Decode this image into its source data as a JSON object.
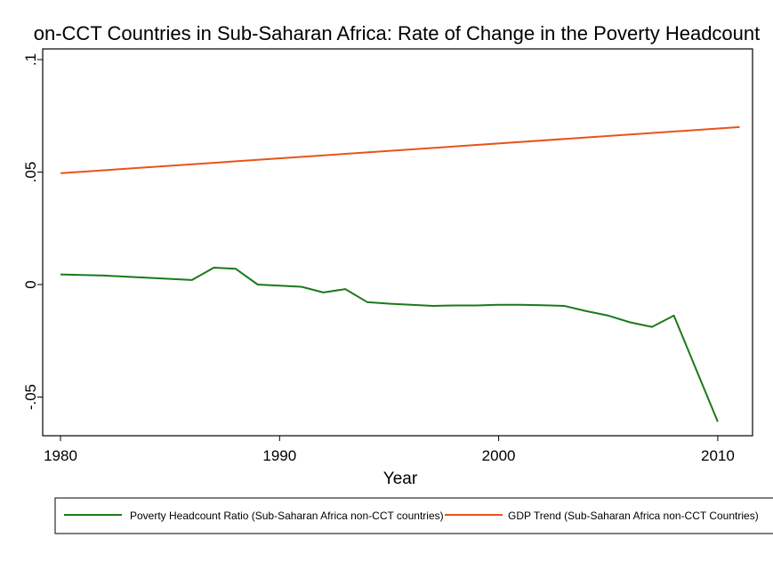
{
  "chart_data": {
    "type": "line",
    "title": "on-CCT Countries in Sub-Saharan Africa: Rate of Change in the Poverty Headcount",
    "xlabel": "Year",
    "ylabel": "",
    "xlim": [
      1980,
      2011
    ],
    "ylim": [
      -0.067,
      0.1
    ],
    "xticks": [
      1980,
      1990,
      2000,
      2010
    ],
    "xtick_labels": [
      "1980",
      "1990",
      "2000",
      "2010"
    ],
    "yticks": [
      -0.05,
      0,
      0.05,
      0.1
    ],
    "ytick_labels": [
      "-.05",
      "0",
      ".05",
      ".1"
    ],
    "grid": false,
    "legend_position": "bottom",
    "series": [
      {
        "name": "Poverty Headcount Ratio (Sub-Saharan Africa non-CCT countries)",
        "color": "#1a7a1a",
        "x": [
          1980,
          1982,
          1984,
          1986,
          1987,
          1988,
          1989,
          1990,
          1991,
          1992,
          1993,
          1994,
          1995,
          1996,
          1997,
          1998,
          1999,
          2000,
          2001,
          2002,
          2003,
          2004,
          2005,
          2006,
          2007,
          2008,
          2010
        ],
        "values": [
          0.0045,
          0.004,
          0.003,
          0.002,
          0.0075,
          0.007,
          0.0,
          -0.0005,
          -0.001,
          -0.0035,
          -0.002,
          -0.0078,
          -0.0085,
          -0.009,
          -0.0095,
          -0.0093,
          -0.0093,
          -0.009,
          -0.009,
          -0.0092,
          -0.0095,
          -0.0118,
          -0.0138,
          -0.0168,
          -0.0188,
          -0.0138,
          -0.061
        ]
      },
      {
        "name": "GDP Trend (Sub-Saharan Africa non-CCT Countries)",
        "color": "#e8541a",
        "x": [
          1980,
          2011
        ],
        "values": [
          0.0495,
          0.07
        ]
      }
    ]
  }
}
